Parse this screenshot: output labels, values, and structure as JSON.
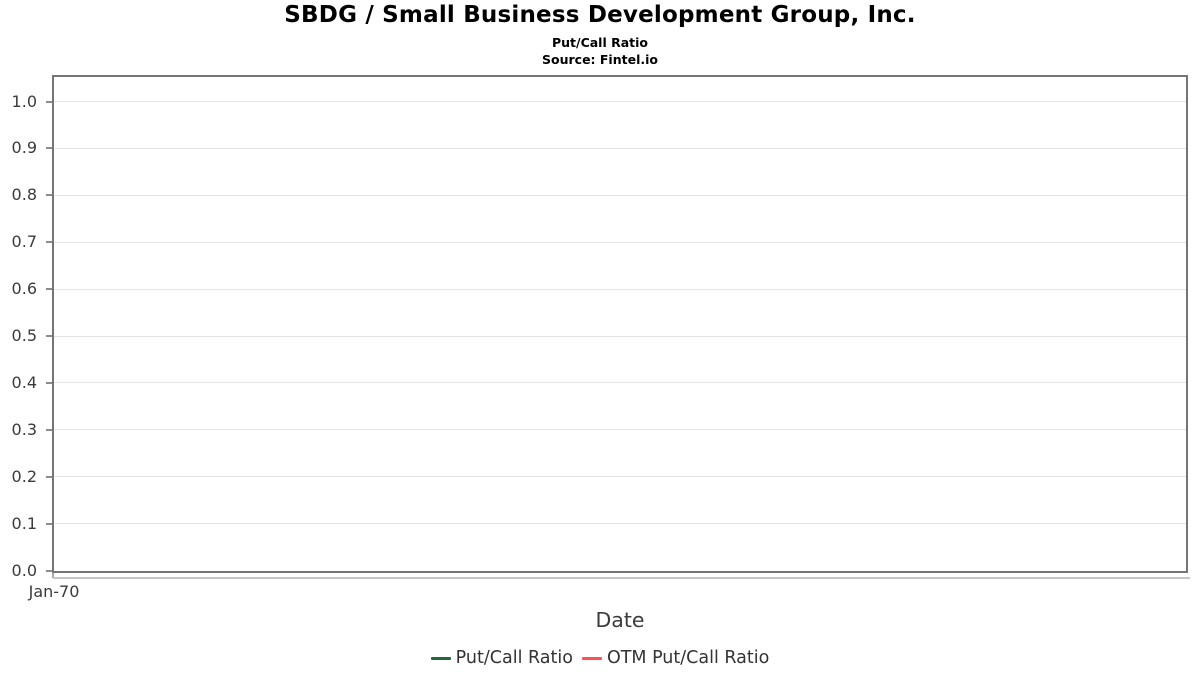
{
  "header": {
    "title": "SBDG / Small Business Development Group, Inc.",
    "subtitle": "Put/Call Ratio",
    "source": "Source: Fintel.io"
  },
  "chart_data": {
    "type": "line",
    "title": "SBDG / Small Business Development Group, Inc.",
    "subtitle": "Put/Call Ratio",
    "source": "Source: Fintel.io",
    "xlabel": "Date",
    "ylabel": "",
    "ylim": [
      0.0,
      1.0
    ],
    "yticks": [
      0.0,
      0.1,
      0.2,
      0.3,
      0.4,
      0.5,
      0.6,
      0.7,
      0.8,
      0.9,
      1.0
    ],
    "ytick_labels": [
      "0.0",
      "0.1",
      "0.2",
      "0.3",
      "0.4",
      "0.5",
      "0.6",
      "0.7",
      "0.8",
      "0.9",
      "1.0"
    ],
    "xtick_labels": [
      "Jan-70"
    ],
    "grid": "horizontal",
    "legend_position": "bottom",
    "x": [],
    "series": [
      {
        "name": "Put/Call Ratio",
        "color": "#216939",
        "values": []
      },
      {
        "name": "OTM Put/Call Ratio",
        "color": "#fb5151",
        "values": []
      }
    ]
  },
  "axes": {
    "x_label": "Date",
    "x_tick": "Jan-70"
  },
  "legend": {
    "items": [
      {
        "label": "Put/Call Ratio",
        "color": "#216939"
      },
      {
        "label": "OTM Put/Call Ratio",
        "color": "#fb5151"
      }
    ]
  },
  "colors": {
    "grid": "#e5e5e5",
    "spine": "#757575",
    "tick_text": "#3b3b3b",
    "legend_text": "#333333"
  }
}
